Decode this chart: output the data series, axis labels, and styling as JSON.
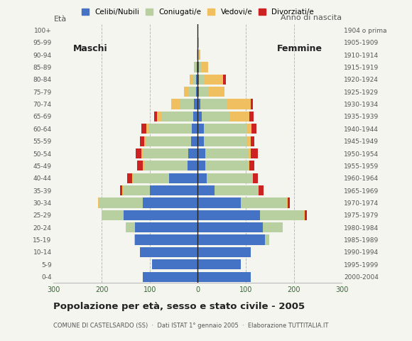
{
  "age_groups": [
    "0-4",
    "5-9",
    "10-14",
    "15-19",
    "20-24",
    "25-29",
    "30-34",
    "35-39",
    "40-44",
    "45-49",
    "50-54",
    "55-59",
    "60-64",
    "65-69",
    "70-74",
    "75-79",
    "80-84",
    "85-89",
    "90-94",
    "95-99",
    "100+"
  ],
  "birth_years": [
    "2000-2004",
    "1995-1999",
    "1990-1994",
    "1985-1989",
    "1980-1984",
    "1975-1979",
    "1970-1974",
    "1965-1969",
    "1960-1964",
    "1955-1959",
    "1950-1954",
    "1945-1949",
    "1940-1944",
    "1935-1939",
    "1930-1934",
    "1925-1929",
    "1920-1924",
    "1915-1919",
    "1910-1914",
    "1905-1909",
    "1904 o prima"
  ],
  "maschi_celibe": [
    115,
    95,
    120,
    130,
    130,
    155,
    115,
    100,
    60,
    22,
    20,
    14,
    12,
    10,
    8,
    4,
    3,
    2,
    0,
    0,
    0
  ],
  "maschi_coniugato": [
    0,
    0,
    0,
    2,
    20,
    45,
    90,
    55,
    75,
    90,
    95,
    95,
    90,
    65,
    30,
    15,
    8,
    4,
    2,
    0,
    0
  ],
  "maschi_vedovo": [
    0,
    0,
    0,
    0,
    0,
    0,
    2,
    2,
    2,
    2,
    2,
    2,
    5,
    10,
    18,
    10,
    6,
    2,
    0,
    0,
    0
  ],
  "maschi_divorziato": [
    0,
    0,
    0,
    0,
    0,
    0,
    0,
    5,
    10,
    12,
    12,
    10,
    10,
    5,
    0,
    0,
    0,
    0,
    0,
    0,
    0
  ],
  "femmine_celibe": [
    110,
    90,
    110,
    140,
    135,
    130,
    90,
    35,
    18,
    15,
    15,
    12,
    12,
    8,
    5,
    3,
    3,
    2,
    0,
    0,
    0
  ],
  "femmine_coniugata": [
    0,
    0,
    0,
    8,
    40,
    90,
    95,
    90,
    95,
    90,
    90,
    90,
    90,
    60,
    55,
    18,
    10,
    5,
    0,
    0,
    0
  ],
  "femmine_vedova": [
    0,
    0,
    0,
    0,
    2,
    2,
    2,
    2,
    2,
    2,
    5,
    8,
    10,
    40,
    50,
    35,
    40,
    15,
    5,
    2,
    0
  ],
  "femmine_divorziata": [
    0,
    0,
    0,
    0,
    0,
    5,
    5,
    10,
    10,
    10,
    15,
    8,
    10,
    8,
    5,
    0,
    5,
    0,
    0,
    0,
    0
  ],
  "color_celibe": "#4472c4",
  "color_coniugato": "#b8cfa0",
  "color_vedovo": "#f0c060",
  "color_divorziato": "#cc2222",
  "title": "Popolazione per età, sesso e stato civile - 2005",
  "subtitle": "COMUNE DI CASTELSARDO (SS)  ·  Dati ISTAT 1° gennaio 2005  ·  Elaborazione TUTTITALIA.IT",
  "ylabel_left": "Età",
  "ylabel_right": "Anno di nascita",
  "xlim": 300,
  "background_color": "#f5f5f0",
  "legend_labels": [
    "Celibi/Nubili",
    "Coniugati/e",
    "Vedovi/e",
    "Divorziati/e"
  ]
}
